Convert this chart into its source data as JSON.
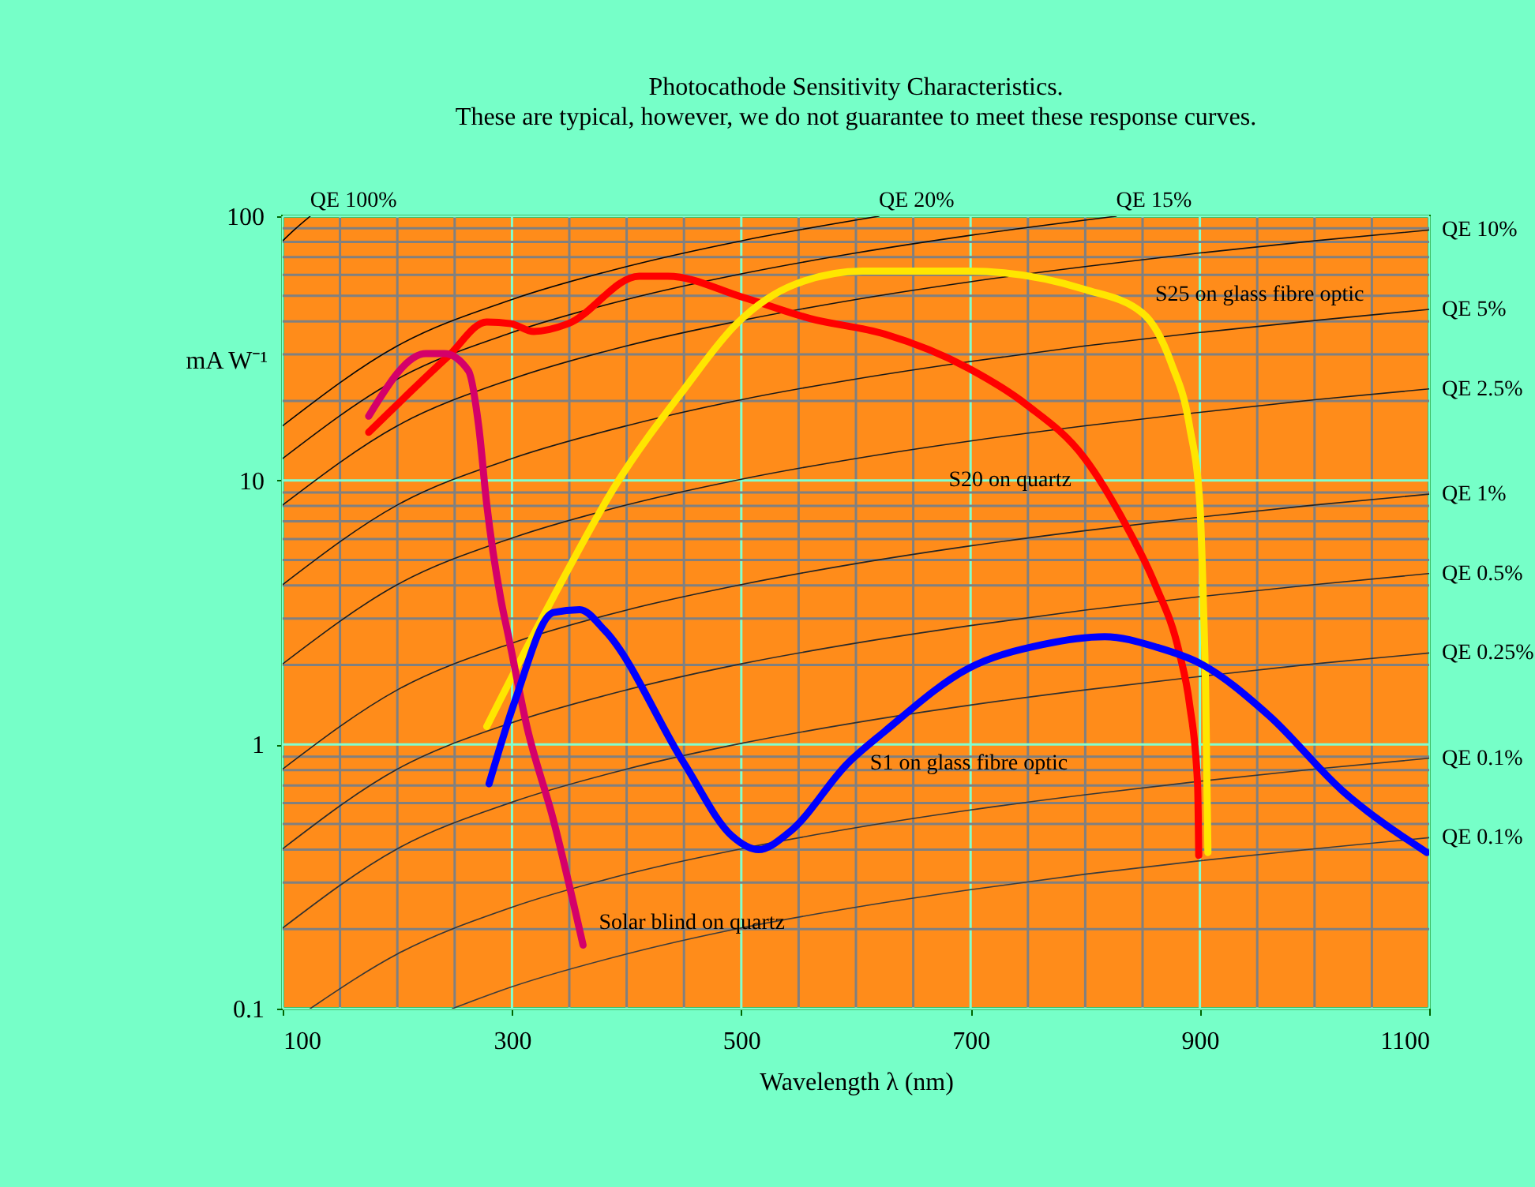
{
  "chart_data": {
    "type": "line",
    "title": "Photocathode Sensitivity Characteristics.",
    "subtitle": "These are typical, however, we do not guarantee to meet these response curves.",
    "xlabel": "Wavelength λ (nm)",
    "ylabel": "mA W⁻¹",
    "log": "y",
    "grid": true,
    "xlim": [
      100,
      1100
    ],
    "ylim": [
      0.1,
      100
    ],
    "xticks": [
      100,
      {
        "value": 150,
        "label": null
      },
      {
        "value": 200,
        "label": null
      },
      {
        "value": 250,
        "label": null
      },
      300,
      {
        "value": 350,
        "label": null
      },
      {
        "value": 400,
        "label": null
      },
      {
        "value": 450,
        "label": null
      },
      500,
      {
        "value": 550,
        "label": null
      },
      {
        "value": 600,
        "label": null
      },
      {
        "value": 650,
        "label": null
      },
      700,
      {
        "value": 750,
        "label": null
      },
      {
        "value": 800,
        "label": null
      },
      {
        "value": 850,
        "label": null
      },
      900,
      {
        "value": 950,
        "label": null
      },
      {
        "value": 1000,
        "label": null
      },
      {
        "value": 1050,
        "label": null
      },
      1100
    ],
    "yticks": [
      0.1,
      {
        "value": 0.2,
        "label": null
      },
      {
        "value": 0.3,
        "label": null
      },
      {
        "value": 0.4,
        "label": null
      },
      {
        "value": 0.5,
        "label": null
      },
      {
        "value": 0.6,
        "label": null
      },
      {
        "value": 0.7,
        "label": null
      },
      {
        "value": 0.8,
        "label": null
      },
      {
        "value": 0.9,
        "label": null
      },
      1,
      {
        "value": 2,
        "label": null
      },
      {
        "value": 3,
        "label": null
      },
      {
        "value": 4,
        "label": null
      },
      {
        "value": 5,
        "label": null
      },
      {
        "value": 6,
        "label": null
      },
      {
        "value": 7,
        "label": null
      },
      {
        "value": 8,
        "label": null
      },
      {
        "value": 9,
        "label": null
      },
      10,
      {
        "value": 20,
        "label": null
      },
      {
        "value": 30,
        "label": null
      },
      {
        "value": 40,
        "label": null
      },
      {
        "value": 50,
        "label": null
      },
      {
        "value": 60,
        "label": null
      },
      {
        "value": 70,
        "label": null
      },
      {
        "value": 80,
        "label": null
      },
      {
        "value": 90,
        "label": null
      },
      100
    ],
    "series": [
      {
        "name": "QE 100%",
        "color": "#000000",
        "x": [
          100,
          110,
          124
        ],
        "values": [
          80.7,
          88.7,
          100
        ]
      },
      {
        "name": "QE 20%",
        "color": "#060606",
        "x": [
          100,
          200,
          300,
          400,
          500,
          620
        ],
        "values": [
          16.1,
          32.3,
          48.4,
          64.5,
          80.7,
          100
        ]
      },
      {
        "name": "QE 15%",
        "color": "#0c0c0c",
        "x": [
          100,
          200,
          300,
          400,
          500,
          600,
          700,
          827
        ],
        "values": [
          12.1,
          24.2,
          36.3,
          48.4,
          60.5,
          72.6,
          84.7,
          100
        ]
      },
      {
        "name": "QE 10%",
        "color": "#121212",
        "x": [
          100,
          200,
          300,
          400,
          500,
          600,
          700,
          800,
          900,
          1000,
          1100
        ],
        "values": [
          8.07,
          16.1,
          24.2,
          32.3,
          40.3,
          48.4,
          56.5,
          64.5,
          72.6,
          80.7,
          88.7
        ]
      },
      {
        "name": "QE 5%",
        "color": "#181818",
        "x": [
          100,
          200,
          300,
          400,
          500,
          600,
          700,
          800,
          900,
          1000,
          1100
        ],
        "values": [
          4.03,
          8.07,
          12.1,
          16.1,
          20.2,
          24.2,
          28.2,
          32.3,
          36.3,
          40.3,
          44.4
        ]
      },
      {
        "name": "QE 2.5%",
        "color": "#1e1e1e",
        "x": [
          100,
          200,
          300,
          400,
          500,
          600,
          700,
          800,
          900,
          1000,
          1100
        ],
        "values": [
          2.02,
          4.03,
          6.05,
          8.07,
          10.1,
          12.1,
          14.1,
          16.1,
          18.1,
          20.2,
          22.2
        ]
      },
      {
        "name": "QE 1%",
        "color": "#242424",
        "x": [
          100,
          200,
          300,
          400,
          500,
          600,
          700,
          800,
          900,
          1000,
          1100
        ],
        "values": [
          0.807,
          1.61,
          2.42,
          3.23,
          4.03,
          4.84,
          5.65,
          6.45,
          7.26,
          8.07,
          8.87
        ]
      },
      {
        "name": "QE 0.5%",
        "color": "#2a2a2a",
        "x": [
          100,
          200,
          300,
          400,
          500,
          600,
          700,
          800,
          900,
          1000,
          1100
        ],
        "values": [
          0.403,
          0.807,
          1.21,
          1.61,
          2.02,
          2.42,
          2.82,
          3.23,
          3.63,
          4.03,
          4.44
        ]
      },
      {
        "name": "QE 0.25%",
        "color": "#303030",
        "x": [
          100,
          200,
          300,
          400,
          500,
          600,
          700,
          800,
          900,
          1000,
          1100
        ],
        "values": [
          0.202,
          0.403,
          0.605,
          0.807,
          1.01,
          1.21,
          1.41,
          1.61,
          1.81,
          2.02,
          2.22
        ]
      },
      {
        "name": "QE 0.1%",
        "color": "#363636",
        "x": [
          124,
          200,
          300,
          400,
          500,
          600,
          700,
          800,
          900,
          1000,
          1100
        ],
        "values": [
          0.1,
          0.161,
          0.242,
          0.323,
          0.403,
          0.484,
          0.565,
          0.645,
          0.726,
          0.807,
          0.887
        ]
      },
      {
        "name": "QE 0.1%",
        "color": "#3c3c3c",
        "x": [
          248,
          300,
          400,
          500,
          600,
          700,
          800,
          900,
          1000,
          1100
        ],
        "values": [
          0.1,
          0.121,
          0.161,
          0.202,
          0.242,
          0.282,
          0.323,
          0.363,
          0.403,
          0.444
        ]
      },
      {
        "name": "S20 on quartz",
        "color": "#ff0000",
        "x": [
          175,
          244,
          278,
          299,
          319,
          349,
          411,
          436,
          501,
          560,
          625,
          698,
          749,
          799,
          836,
          861,
          882,
          891,
          898,
          899
        ],
        "values": [
          15.2,
          29.4,
          39.8,
          39.2,
          36.6,
          39.2,
          59.3,
          59.3,
          49.4,
          41,
          35.8,
          26.6,
          19.3,
          12.2,
          6.7,
          4.03,
          2.23,
          1.42,
          0.71,
          0.38
        ]
      },
      {
        "name": "S25 on glass fibre optic",
        "color": "#ffe600",
        "x": [
          278,
          336,
          391,
          450,
          496,
          547,
          606,
          698,
          799,
          850,
          875,
          891,
          900,
          903,
          905,
          907
        ],
        "values": [
          1.17,
          3.61,
          9.68,
          22.1,
          39.2,
          55.3,
          62,
          62,
          52.9,
          43,
          27.8,
          16,
          8.1,
          3.5,
          1.61,
          0.39
        ]
      },
      {
        "name": "Solar blind on quartz",
        "color": "#d4006a",
        "x": [
          175,
          225,
          241,
          262,
          271,
          278,
          290,
          297,
          313,
          336,
          362
        ],
        "values": [
          17.5,
          30.2,
          30.2,
          26,
          16,
          8.1,
          3.6,
          2.56,
          1.17,
          0.52,
          0.174
        ]
      },
      {
        "name": "S1 on glass fibre optic",
        "color": "#0000ff",
        "x": [
          280,
          303,
          336,
          359,
          381,
          450,
          492,
          515,
          542,
          593,
          625,
          698,
          763,
          817,
          863,
          900,
          960,
          1024,
          1098
        ],
        "values": [
          0.71,
          1.48,
          3.16,
          3.24,
          2.7,
          0.85,
          0.45,
          0.4,
          0.466,
          0.85,
          1.12,
          1.94,
          2.39,
          2.56,
          2.33,
          2.03,
          1.29,
          0.67,
          0.39
        ]
      }
    ]
  }
}
